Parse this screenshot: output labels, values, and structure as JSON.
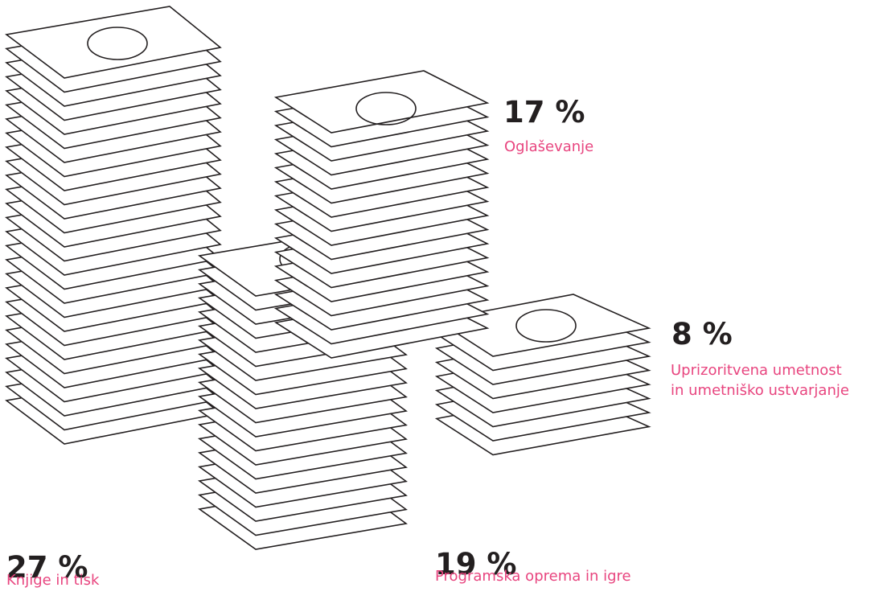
{
  "chart_data": {
    "type": "pictograph",
    "unit": "%",
    "series": [
      {
        "label": "Knjige in tisk",
        "value": 27,
        "value_label": "27 %"
      },
      {
        "label": "Oglaševanje",
        "value": 17,
        "value_label": "17 %"
      },
      {
        "label": "Programska oprema in igre",
        "value": 19,
        "value_label": "19 %"
      },
      {
        "label_lines": [
          "Uprizoritvena umetnost",
          "in umetniško ustvarjanje"
        ],
        "value": 8,
        "value_label": "8 %"
      }
    ]
  },
  "colors": {
    "value_text": "#231f20",
    "category_text": "#e8457f",
    "stroke": "#231f20",
    "sheet_fill": "#ffffff"
  }
}
